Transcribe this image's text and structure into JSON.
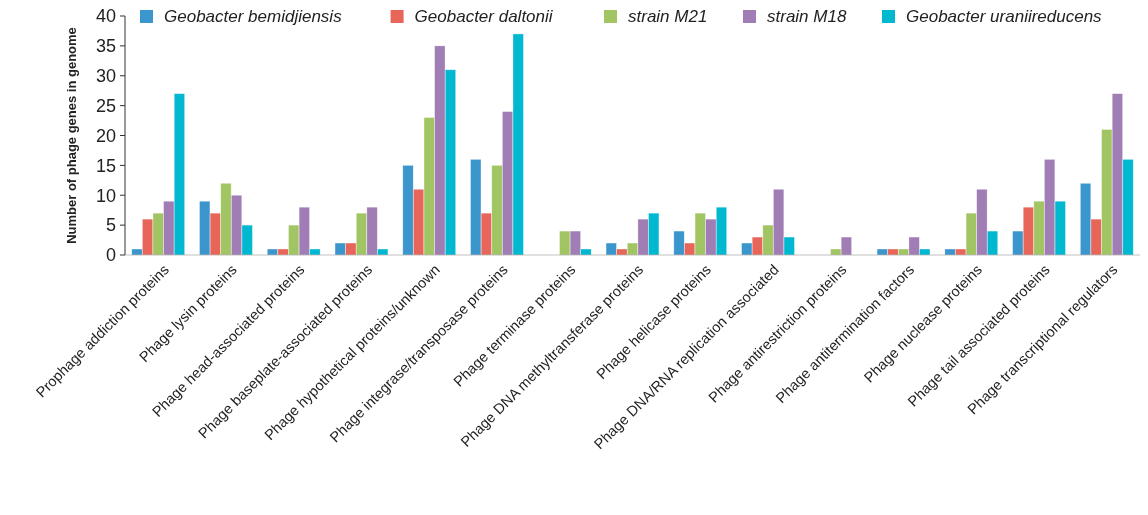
{
  "chart_data": {
    "type": "bar",
    "ylabel": "Number of phage genes in genome",
    "categories": [
      "Prophage addiction proteins",
      "Phage lysin proteins",
      "Phage head-associated proteins",
      "Phage baseplate-associated proteins",
      "Phage hypothetical proteins/unknown",
      "Phage integrase/transposase proteins",
      "Phage terminase proteins",
      "Phage DNA methyltransferase proteins",
      "Phage helicase proteins",
      "Phage DNA/RNA replication associated",
      "Phage antirestriction proteins",
      "Phage antitermination factors",
      "Phage nuclease proteins",
      "Phage tail associated proteins",
      "Phage transcriptional regulators"
    ],
    "series": [
      {
        "name": "Geobacter bemidjiensis",
        "color": "#3a96cc",
        "values": [
          1,
          9,
          1,
          2,
          15,
          16,
          0,
          2,
          4,
          2,
          0,
          1,
          1,
          4,
          12
        ]
      },
      {
        "name": "Geobacter daltonii",
        "color": "#e8655a",
        "values": [
          6,
          7,
          1,
          2,
          11,
          7,
          0,
          1,
          2,
          3,
          0,
          1,
          1,
          8,
          6
        ]
      },
      {
        "name": "strain M21",
        "color": "#a2c563",
        "values": [
          7,
          12,
          5,
          7,
          23,
          15,
          4,
          2,
          7,
          5,
          1,
          1,
          7,
          9,
          21
        ]
      },
      {
        "name": "strain M18",
        "color": "#a17db5",
        "values": [
          9,
          10,
          8,
          8,
          35,
          24,
          4,
          6,
          6,
          11,
          3,
          3,
          11,
          16,
          27
        ]
      },
      {
        "name": "Geobacter uraniireducens",
        "color": "#00b8d0",
        "values": [
          27,
          5,
          1,
          1,
          31,
          37,
          1,
          7,
          8,
          3,
          0,
          1,
          4,
          9,
          16
        ]
      }
    ],
    "ylim": [
      0,
      40
    ],
    "yticks": [
      0,
      5,
      10,
      15,
      20,
      25,
      30,
      35,
      40
    ],
    "grid": false,
    "legend": "top"
  }
}
